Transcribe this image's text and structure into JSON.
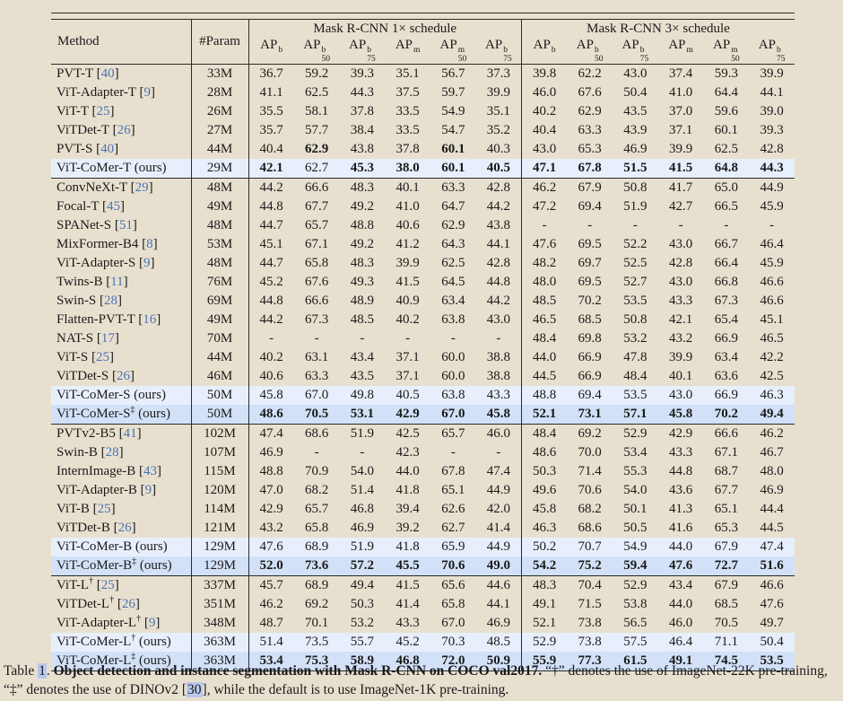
{
  "colors": {
    "page_background": "#e8e0cf",
    "row_highlight_light": "#e8effc",
    "row_highlight_strong": "#d2e1f7",
    "citation_blue": "#4a73b2",
    "link_highlight": "#b9c7ea",
    "rule_color": "#2b2b2b",
    "text_color": "#1a1a1a"
  },
  "table": {
    "header": {
      "method": "Method",
      "param": "#Param",
      "group1": "Mask R-CNN 1× schedule",
      "group3": "Mask R-CNN 3× schedule",
      "metrics": [
        {
          "base": "AP",
          "sup": "b",
          "sub": ""
        },
        {
          "base": "AP",
          "sup": "b",
          "sub": "50"
        },
        {
          "base": "AP",
          "sup": "b",
          "sub": "75"
        },
        {
          "base": "AP",
          "sup": "m",
          "sub": ""
        },
        {
          "base": "AP",
          "sup": "m",
          "sub": "50"
        },
        {
          "base": "AP",
          "sup": "b",
          "sub": "75"
        }
      ]
    },
    "ours_suffix": " (ours)",
    "cite_open": " [",
    "cite_close": "]",
    "groups": [
      {
        "rows": [
          {
            "name": "PVT-T",
            "cite": "40",
            "param": "33M",
            "s1": [
              "36.7",
              "59.2",
              "39.3",
              "35.1",
              "56.7",
              "37.3"
            ],
            "s3": [
              "39.8",
              "62.2",
              "43.0",
              "37.4",
              "59.3",
              "39.9"
            ]
          },
          {
            "name": "ViT-Adapter-T",
            "cite": "9",
            "param": "28M",
            "s1": [
              "41.1",
              "62.5",
              "44.3",
              "37.5",
              "59.7",
              "39.9"
            ],
            "s3": [
              "46.0",
              "67.6",
              "50.4",
              "41.0",
              "64.4",
              "44.1"
            ]
          },
          {
            "name": "ViT-T",
            "cite": "25",
            "param": "26M",
            "s1": [
              "35.5",
              "58.1",
              "37.8",
              "33.5",
              "54.9",
              "35.1"
            ],
            "s3": [
              "40.2",
              "62.9",
              "43.5",
              "37.0",
              "59.6",
              "39.0"
            ]
          },
          {
            "name": "ViTDet-T",
            "cite": "26",
            "param": "27M",
            "s1": [
              "35.7",
              "57.7",
              "38.4",
              "33.5",
              "54.7",
              "35.2"
            ],
            "s3": [
              "40.4",
              "63.3",
              "43.9",
              "37.1",
              "60.1",
              "39.3"
            ]
          },
          {
            "name": "PVT-S",
            "cite": "40",
            "param": "44M",
            "s1": [
              "40.4",
              "62.9",
              "43.8",
              "37.8",
              "60.1",
              "40.3"
            ],
            "b1": [
              0,
              1,
              0,
              0,
              1,
              0
            ],
            "s3": [
              "43.0",
              "65.3",
              "46.9",
              "39.9",
              "62.5",
              "42.8"
            ]
          },
          {
            "name": "ViT-CoMer-T",
            "ours": true,
            "hl": "light",
            "param": "29M",
            "s1": [
              "42.1",
              "62.7",
              "45.3",
              "38.0",
              "60.1",
              "40.5"
            ],
            "b1": [
              1,
              0,
              1,
              1,
              1,
              1
            ],
            "s3": [
              "47.1",
              "67.8",
              "51.5",
              "41.5",
              "64.8",
              "44.3"
            ],
            "b3": [
              1,
              1,
              1,
              1,
              1,
              1
            ]
          }
        ]
      },
      {
        "rows": [
          {
            "name": "ConvNeXt-T",
            "cite": "29",
            "param": "48M",
            "s1": [
              "44.2",
              "66.6",
              "48.3",
              "40.1",
              "63.3",
              "42.8"
            ],
            "s3": [
              "46.2",
              "67.9",
              "50.8",
              "41.7",
              "65.0",
              "44.9"
            ]
          },
          {
            "name": "Focal-T",
            "cite": "45",
            "param": "49M",
            "s1": [
              "44.8",
              "67.7",
              "49.2",
              "41.0",
              "64.7",
              "44.2"
            ],
            "s3": [
              "47.2",
              "69.4",
              "51.9",
              "42.7",
              "66.5",
              "45.9"
            ]
          },
          {
            "name": "SPANet-S",
            "cite": "51",
            "param": "48M",
            "s1": [
              "44.7",
              "65.7",
              "48.8",
              "40.6",
              "62.9",
              "43.8"
            ],
            "s3": [
              "-",
              "-",
              "-",
              "-",
              "-",
              "-"
            ]
          },
          {
            "name": "MixFormer-B4",
            "cite": "8",
            "param": "53M",
            "s1": [
              "45.1",
              "67.1",
              "49.2",
              "41.2",
              "64.3",
              "44.1"
            ],
            "s3": [
              "47.6",
              "69.5",
              "52.2",
              "43.0",
              "66.7",
              "46.4"
            ]
          },
          {
            "name": "ViT-Adapter-S",
            "cite": "9",
            "param": "48M",
            "s1": [
              "44.7",
              "65.8",
              "48.3",
              "39.9",
              "62.5",
              "42.8"
            ],
            "s3": [
              "48.2",
              "69.7",
              "52.5",
              "42.8",
              "66.4",
              "45.9"
            ]
          },
          {
            "name": "Twins-B",
            "cite": "11",
            "param": "76M",
            "s1": [
              "45.2",
              "67.6",
              "49.3",
              "41.5",
              "64.5",
              "44.8"
            ],
            "s3": [
              "48.0",
              "69.5",
              "52.7",
              "43.0",
              "66.8",
              "46.6"
            ]
          },
          {
            "name": "Swin-S",
            "cite": "28",
            "param": "69M",
            "s1": [
              "44.8",
              "66.6",
              "48.9",
              "40.9",
              "63.4",
              "44.2"
            ],
            "s3": [
              "48.5",
              "70.2",
              "53.5",
              "43.3",
              "67.3",
              "46.6"
            ]
          },
          {
            "name": "Flatten-PVT-T",
            "cite": "16",
            "param": "49M",
            "s1": [
              "44.2",
              "67.3",
              "48.5",
              "40.2",
              "63.8",
              "43.0"
            ],
            "s3": [
              "46.5",
              "68.5",
              "50.8",
              "42.1",
              "65.4",
              "45.1"
            ]
          },
          {
            "name": "NAT-S",
            "cite": "17",
            "param": "70M",
            "s1": [
              "-",
              "-",
              "-",
              "-",
              "-",
              "-"
            ],
            "s3": [
              "48.4",
              "69.8",
              "53.2",
              "43.2",
              "66.9",
              "46.5"
            ]
          },
          {
            "name": "ViT-S",
            "cite": "25",
            "param": "44M",
            "s1": [
              "40.2",
              "63.1",
              "43.4",
              "37.1",
              "60.0",
              "38.8"
            ],
            "s3": [
              "44.0",
              "66.9",
              "47.8",
              "39.9",
              "63.4",
              "42.2"
            ]
          },
          {
            "name": "ViTDet-S",
            "cite": "26",
            "param": "46M",
            "s1": [
              "40.6",
              "63.3",
              "43.5",
              "37.1",
              "60.0",
              "38.8"
            ],
            "s3": [
              "44.5",
              "66.9",
              "48.4",
              "40.1",
              "63.6",
              "42.5"
            ]
          },
          {
            "name": "ViT-CoMer-S",
            "ours": true,
            "hl": "light",
            "param": "50M",
            "s1": [
              "45.8",
              "67.0",
              "49.8",
              "40.5",
              "63.8",
              "43.3"
            ],
            "s3": [
              "48.8",
              "69.4",
              "53.5",
              "43.0",
              "66.9",
              "46.3"
            ]
          },
          {
            "name": "ViT-CoMer-S",
            "sup": "‡",
            "ours": true,
            "hl": "strong",
            "bold": true,
            "param": "50M",
            "s1": [
              "48.6",
              "70.5",
              "53.1",
              "42.9",
              "67.0",
              "45.8"
            ],
            "s3": [
              "52.1",
              "73.1",
              "57.1",
              "45.8",
              "70.2",
              "49.4"
            ]
          }
        ]
      },
      {
        "rows": [
          {
            "name": "PVTv2-B5",
            "cite": "41",
            "param": "102M",
            "s1": [
              "47.4",
              "68.6",
              "51.9",
              "42.5",
              "65.7",
              "46.0"
            ],
            "s3": [
              "48.4",
              "69.2",
              "52.9",
              "42.9",
              "66.6",
              "46.2"
            ]
          },
          {
            "name": "Swin-B",
            "cite": "28",
            "param": "107M",
            "s1": [
              "46.9",
              "-",
              "-",
              "42.3",
              "-",
              "-"
            ],
            "s3": [
              "48.6",
              "70.0",
              "53.4",
              "43.3",
              "67.1",
              "46.7"
            ]
          },
          {
            "name": "InternImage-B",
            "cite": "43",
            "param": "115M",
            "s1": [
              "48.8",
              "70.9",
              "54.0",
              "44.0",
              "67.8",
              "47.4"
            ],
            "s3": [
              "50.3",
              "71.4",
              "55.3",
              "44.8",
              "68.7",
              "48.0"
            ]
          },
          {
            "name": "ViT-Adapter-B",
            "cite": "9",
            "param": "120M",
            "s1": [
              "47.0",
              "68.2",
              "51.4",
              "41.8",
              "65.1",
              "44.9"
            ],
            "s3": [
              "49.6",
              "70.6",
              "54.0",
              "43.6",
              "67.7",
              "46.9"
            ]
          },
          {
            "name": "ViT-B",
            "cite": "25",
            "param": "114M",
            "s1": [
              "42.9",
              "65.7",
              "46.8",
              "39.4",
              "62.6",
              "42.0"
            ],
            "s3": [
              "45.8",
              "68.2",
              "50.1",
              "41.3",
              "65.1",
              "44.4"
            ]
          },
          {
            "name": "ViTDet-B",
            "cite": "26",
            "param": "121M",
            "s1": [
              "43.2",
              "65.8",
              "46.9",
              "39.2",
              "62.7",
              "41.4"
            ],
            "s3": [
              "46.3",
              "68.6",
              "50.5",
              "41.6",
              "65.3",
              "44.5"
            ]
          },
          {
            "name": "ViT-CoMer-B",
            "ours": true,
            "hl": "light",
            "param": "129M",
            "s1": [
              "47.6",
              "68.9",
              "51.9",
              "41.8",
              "65.9",
              "44.9"
            ],
            "s3": [
              "50.2",
              "70.7",
              "54.9",
              "44.0",
              "67.9",
              "47.4"
            ]
          },
          {
            "name": "ViT-CoMer-B",
            "sup": "‡",
            "ours": true,
            "hl": "strong",
            "bold": true,
            "param": "129M",
            "s1": [
              "52.0",
              "73.6",
              "57.2",
              "45.5",
              "70.6",
              "49.0"
            ],
            "s3": [
              "54.2",
              "75.2",
              "59.4",
              "47.6",
              "72.7",
              "51.6"
            ]
          }
        ]
      },
      {
        "rows": [
          {
            "name": "ViT-L",
            "sup": "†",
            "cite": "25",
            "param": "337M",
            "s1": [
              "45.7",
              "68.9",
              "49.4",
              "41.5",
              "65.6",
              "44.6"
            ],
            "s3": [
              "48.3",
              "70.4",
              "52.9",
              "43.4",
              "67.9",
              "46.6"
            ]
          },
          {
            "name": "ViTDet-L",
            "sup": "†",
            "cite": "26",
            "param": "351M",
            "s1": [
              "46.2",
              "69.2",
              "50.3",
              "41.4",
              "65.8",
              "44.1"
            ],
            "s3": [
              "49.1",
              "71.5",
              "53.8",
              "44.0",
              "68.5",
              "47.6"
            ]
          },
          {
            "name": "ViT-Adapter-L",
            "sup": "†",
            "cite": "9",
            "param": "348M",
            "s1": [
              "48.7",
              "70.1",
              "53.2",
              "43.3",
              "67.0",
              "46.9"
            ],
            "s3": [
              "52.1",
              "73.8",
              "56.5",
              "46.0",
              "70.5",
              "49.7"
            ]
          },
          {
            "name": "ViT-CoMer-L",
            "sup": "†",
            "ours": true,
            "hl": "light",
            "param": "363M",
            "s1": [
              "51.4",
              "73.5",
              "55.7",
              "45.2",
              "70.3",
              "48.5"
            ],
            "s3": [
              "52.9",
              "73.8",
              "57.5",
              "46.4",
              "71.1",
              "50.4"
            ]
          },
          {
            "name": "ViT-CoMer-L",
            "sup": "‡",
            "ours": true,
            "hl": "strong",
            "bold": true,
            "param": "363M",
            "s1": [
              "53.4",
              "75.3",
              "58.9",
              "46.8",
              "72.0",
              "50.9"
            ],
            "s3": [
              "55.9",
              "77.3",
              "61.5",
              "49.1",
              "74.5",
              "53.5"
            ]
          }
        ]
      }
    ]
  },
  "caption": {
    "prefix": "Table ",
    "number": "1",
    "dot": ". ",
    "bold": "Object detection and instance segmentation with Mask R-CNN on COCO val2017.",
    "mid": " “†” denotes the use of ImageNet-22K pre-training, “‡” denotes the use of DINOv2 [",
    "cite": "30",
    "tail": "], while the default is to use ImageNet-1K pre-training."
  }
}
